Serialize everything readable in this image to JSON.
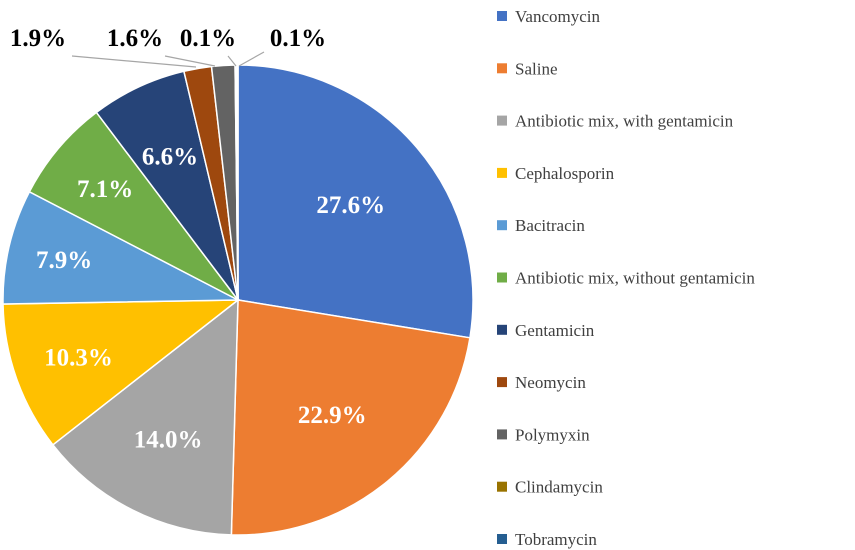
{
  "chart_data": {
    "type": "pie",
    "title": "",
    "legend_position": "right",
    "slices": [
      {
        "name": "Vancomycin",
        "value": 27.6,
        "label": "27.6%",
        "color": "#4472C4"
      },
      {
        "name": "Saline",
        "value": 22.9,
        "label": "22.9%",
        "color": "#ED7D31"
      },
      {
        "name": "Antibiotic mix, with gentamicin",
        "value": 14.0,
        "label": "14.0%",
        "color": "#A5A5A5"
      },
      {
        "name": "Cephalosporin",
        "value": 10.3,
        "label": "10.3%",
        "color": "#FFC000"
      },
      {
        "name": "Bacitracin",
        "value": 7.9,
        "label": "7.9%",
        "color": "#5B9BD5"
      },
      {
        "name": "Antibiotic mix, without gentamicin",
        "value": 7.1,
        "label": "7.1%",
        "color": "#70AD47"
      },
      {
        "name": "Gentamicin",
        "value": 6.6,
        "label": "6.6%",
        "color": "#264478"
      },
      {
        "name": "Neomycin",
        "value": 1.9,
        "label": "1.9%",
        "color": "#9E480E"
      },
      {
        "name": "Polymyxin",
        "value": 1.6,
        "label": "1.6%",
        "color": "#636363"
      },
      {
        "name": "Clindamycin",
        "value": 0.1,
        "label": "0.1%",
        "color": "#997300"
      },
      {
        "name": "Tobramycin",
        "value": 0.1,
        "label": "0.1%",
        "color": "#255E91"
      }
    ]
  }
}
